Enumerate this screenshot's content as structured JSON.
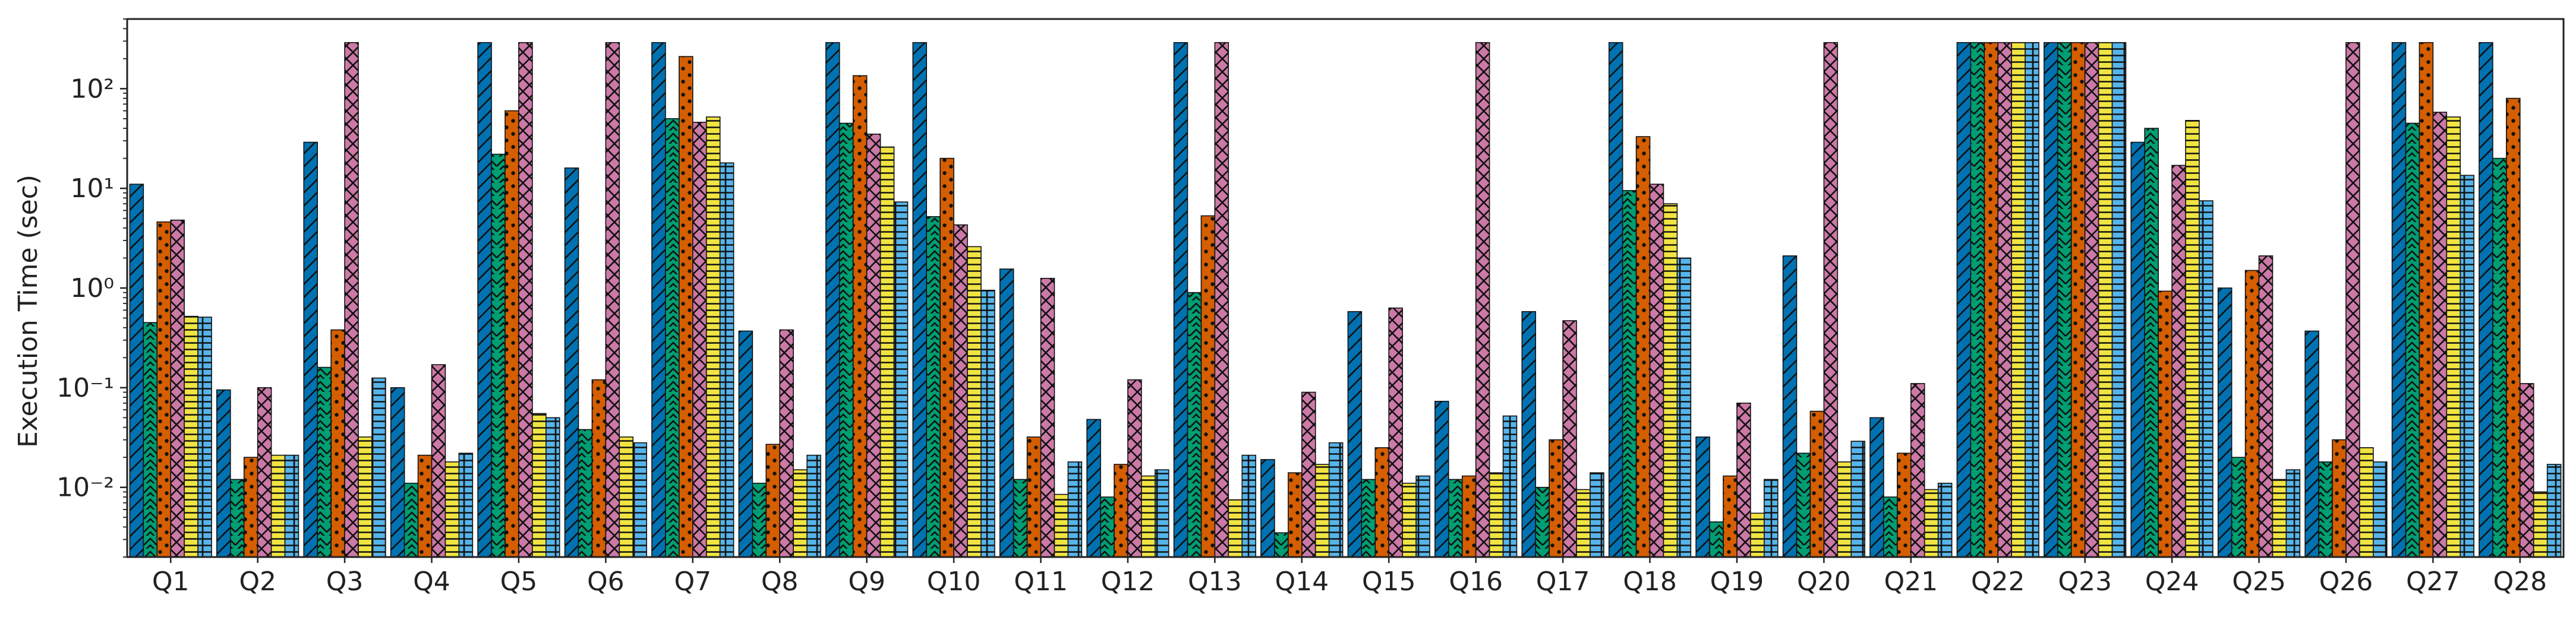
{
  "chart_data": {
    "type": "bar",
    "yscale": "log",
    "ylabel": "Execution Time (sec)",
    "xlabel": "",
    "title": "",
    "ylim": [
      0.002,
      500
    ],
    "ytick_values": [
      0.01,
      0.1,
      1,
      10,
      100
    ],
    "ytick_labels": [
      "10⁻²",
      "10⁻¹",
      "10⁰",
      "10¹",
      "10²"
    ],
    "grid": false,
    "legend": "none",
    "categories": [
      "Q1",
      "Q2",
      "Q3",
      "Q4",
      "Q5",
      "Q6",
      "Q7",
      "Q8",
      "Q9",
      "Q10",
      "Q11",
      "Q12",
      "Q13",
      "Q14",
      "Q15",
      "Q16",
      "Q17",
      "Q18",
      "Q19",
      "Q20",
      "Q21",
      "Q22",
      "Q23",
      "Q24",
      "Q25",
      "Q26",
      "Q27",
      "Q28"
    ],
    "series": [
      {
        "color": "#0072B2",
        "pattern": "diag-forward",
        "values": [
          11,
          0.095,
          29,
          0.1,
          290,
          16,
          290,
          0.37,
          290,
          290,
          1.55,
          0.048,
          290,
          0.019,
          0.58,
          0.073,
          0.58,
          290,
          0.032,
          2.1,
          0.05,
          290,
          290,
          29,
          1.0,
          0.37,
          290,
          290
        ]
      },
      {
        "color": "#009E73",
        "pattern": "chevron",
        "values": [
          0.45,
          0.012,
          0.16,
          0.011,
          22,
          0.038,
          50,
          0.011,
          45,
          5.2,
          0.012,
          0.008,
          0.9,
          0.0035,
          0.012,
          0.012,
          0.01,
          9.5,
          0.0045,
          0.022,
          0.008,
          290,
          290,
          40,
          0.02,
          0.018,
          45,
          20
        ]
      },
      {
        "color": "#D55E00",
        "pattern": "dots",
        "values": [
          4.6,
          0.02,
          0.38,
          0.021,
          60,
          0.12,
          210,
          0.027,
          135,
          20,
          0.032,
          0.017,
          5.3,
          0.014,
          0.025,
          0.013,
          0.03,
          33,
          0.013,
          0.058,
          0.022,
          290,
          290,
          0.93,
          1.5,
          0.03,
          290,
          80
        ]
      },
      {
        "color": "#CC79A7",
        "pattern": "crosshatch",
        "values": [
          4.8,
          0.1,
          290,
          0.17,
          290,
          290,
          46,
          0.38,
          35,
          4.3,
          1.25,
          0.12,
          290,
          0.09,
          0.63,
          290,
          0.47,
          11,
          0.07,
          290,
          0.11,
          290,
          290,
          17,
          2.1,
          290,
          58,
          0.11
        ]
      },
      {
        "color": "#F0E442",
        "pattern": "horizontal",
        "values": [
          0.52,
          0.021,
          0.032,
          0.018,
          0.055,
          0.032,
          52,
          0.015,
          26,
          2.6,
          0.0085,
          0.013,
          0.0075,
          0.017,
          0.011,
          0.014,
          0.0095,
          7,
          0.0055,
          0.018,
          0.0095,
          290,
          290,
          48,
          0.012,
          0.025,
          52,
          0.009
        ]
      },
      {
        "color": "#56B4E9",
        "pattern": "grid",
        "values": [
          0.51,
          0.021,
          0.125,
          0.022,
          0.05,
          0.028,
          18,
          0.021,
          7.3,
          0.95,
          0.018,
          0.015,
          0.021,
          0.028,
          0.013,
          0.052,
          0.014,
          2,
          0.012,
          0.029,
          0.011,
          290,
          290,
          7.5,
          0.015,
          0.018,
          13.5,
          0.017
        ]
      }
    ]
  }
}
